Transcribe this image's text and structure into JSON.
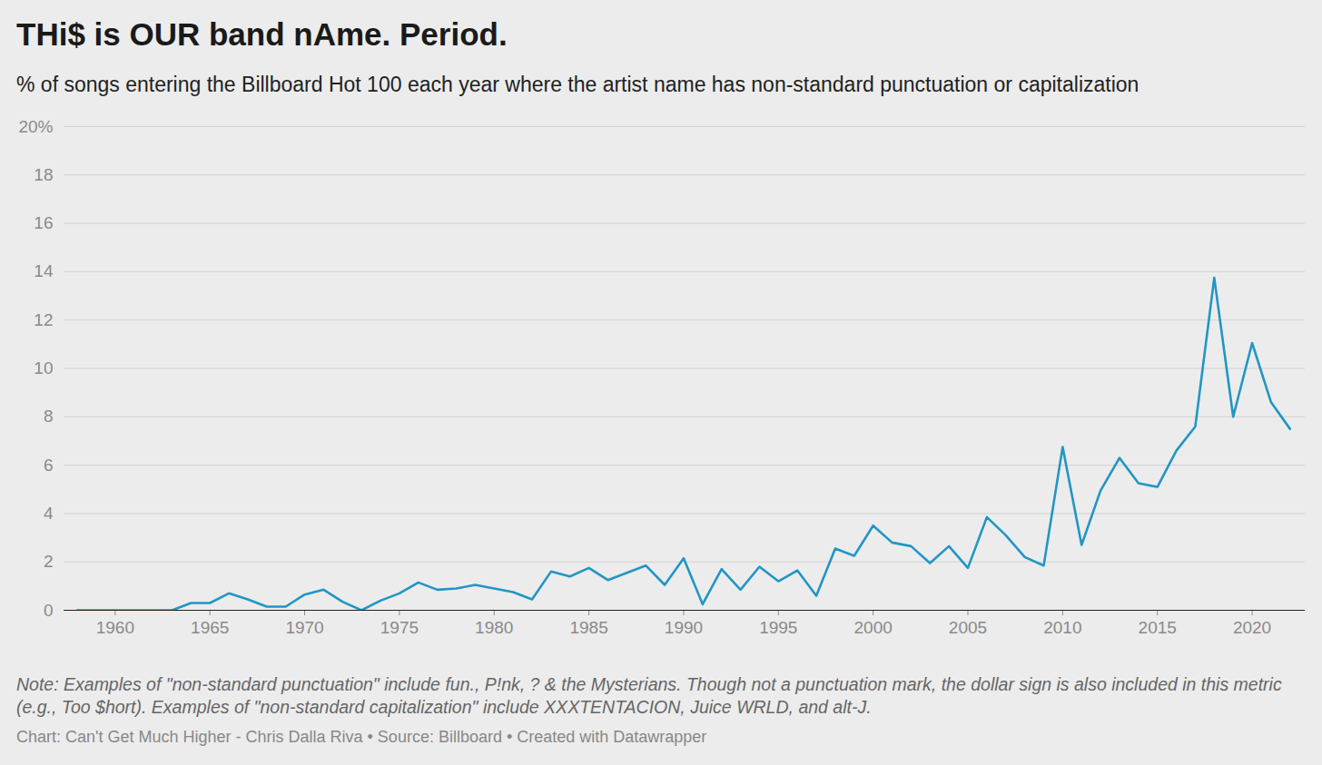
{
  "chart_data": {
    "type": "line",
    "title": "THi$ is OUR band nAme. Period.",
    "subtitle": "% of songs entering the Billboard Hot 100 each year where the artist name has non-standard punctuation or capitalization",
    "annotations": [
      "Note: Examples of \"non-standard punctuation\" include fun., P!nk, ? & the Mysterians. Though not a punctuation mark, the dollar sign is also included in this metric (e.g., Too $hort). Examples of \"non-standard capitalization\" include XXXTENTACION, Juice WRLD, and alt-J.",
      "Chart: Can't Get Much Higher - Chris Dalla Riva • Source: Billboard • Created with Datawrapper"
    ],
    "x": [
      1958,
      1959,
      1960,
      1961,
      1962,
      1963,
      1964,
      1965,
      1966,
      1967,
      1968,
      1969,
      1970,
      1971,
      1972,
      1973,
      1974,
      1975,
      1976,
      1977,
      1978,
      1979,
      1980,
      1981,
      1982,
      1983,
      1984,
      1985,
      1986,
      1987,
      1988,
      1989,
      1990,
      1991,
      1992,
      1993,
      1994,
      1995,
      1996,
      1997,
      1998,
      1999,
      2000,
      2001,
      2002,
      2003,
      2004,
      2005,
      2006,
      2007,
      2008,
      2009,
      2010,
      2011,
      2012,
      2013,
      2014,
      2015,
      2016,
      2017,
      2018,
      2019,
      2020,
      2021,
      2022
    ],
    "values": [
      0,
      0,
      0,
      0,
      0,
      0,
      0.3,
      0.3,
      0.7,
      0.45,
      0.15,
      0.15,
      0.65,
      0.85,
      0.35,
      0,
      0.4,
      0.7,
      1.15,
      0.85,
      0.9,
      1.05,
      0.9,
      0.75,
      0.45,
      1.6,
      1.4,
      1.75,
      1.25,
      1.55,
      1.85,
      1.05,
      2.15,
      0.25,
      1.7,
      0.85,
      1.8,
      1.2,
      1.65,
      0.6,
      2.55,
      2.25,
      3.5,
      2.8,
      2.65,
      1.95,
      2.65,
      1.75,
      3.85,
      3.1,
      2.2,
      1.85,
      6.75,
      2.7,
      4.95,
      6.3,
      5.25,
      5.1,
      6.6,
      7.6,
      13.75,
      8.0,
      11.05,
      8.6,
      7.5
    ],
    "color": "#2196c4",
    "xlim": [
      1957.3,
      2022.8
    ],
    "xticks": [
      1960,
      1965,
      1970,
      1975,
      1980,
      1985,
      1990,
      1995,
      2000,
      2005,
      2010,
      2015,
      2020
    ],
    "ylim": [
      0,
      20
    ],
    "yticks": [
      0,
      2,
      4,
      6,
      8,
      10,
      12,
      14,
      16,
      18,
      {
        "value": 20,
        "label": "20%"
      }
    ],
    "grid": true
  }
}
